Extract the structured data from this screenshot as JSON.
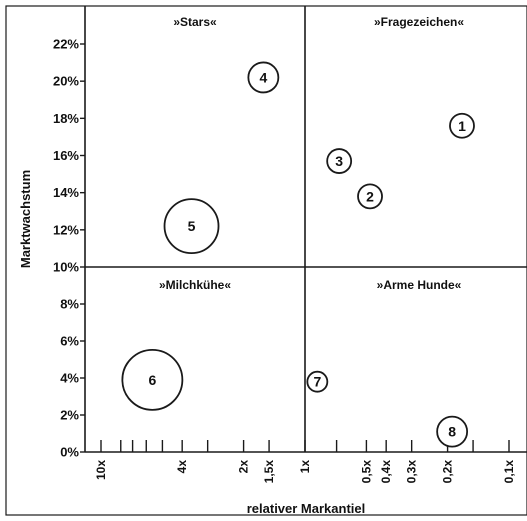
{
  "chart_data": {
    "type": "scatter",
    "title": "",
    "xlabel": "relativer Markantiel",
    "ylabel": "Marktwachstum",
    "x_scale": "log-reversed",
    "xlim": [
      10,
      0.1
    ],
    "ylim": [
      0,
      23
    ],
    "x_divider": 1,
    "y_divider": 10,
    "y_ticks": [
      {
        "value": 0,
        "label": "0%"
      },
      {
        "value": 2,
        "label": "2%"
      },
      {
        "value": 4,
        "label": "4%"
      },
      {
        "value": 6,
        "label": "6%"
      },
      {
        "value": 8,
        "label": "8%"
      },
      {
        "value": 10,
        "label": "10%"
      },
      {
        "value": 12,
        "label": "12%"
      },
      {
        "value": 14,
        "label": "14%"
      },
      {
        "value": 16,
        "label": "16%"
      },
      {
        "value": 18,
        "label": "18%"
      },
      {
        "value": 20,
        "label": "20%"
      },
      {
        "value": 22,
        "label": "22%"
      }
    ],
    "x_ticks": [
      {
        "value": 10,
        "label": "10x"
      },
      {
        "value": 8
      },
      {
        "value": 7
      },
      {
        "value": 6
      },
      {
        "value": 5
      },
      {
        "value": 4,
        "label": "4x"
      },
      {
        "value": 3
      },
      {
        "value": 2,
        "label": "2x"
      },
      {
        "value": 1.5,
        "label": "1,5x"
      },
      {
        "value": 1,
        "label": "1x"
      },
      {
        "value": 0.7
      },
      {
        "value": 0.5,
        "label": "0,5x"
      },
      {
        "value": 0.4,
        "label": "0,4x"
      },
      {
        "value": 0.3,
        "label": "0,3x"
      },
      {
        "value": 0.2,
        "label": "0,2x"
      },
      {
        "value": 0.15
      },
      {
        "value": 0.1,
        "label": "0,1x"
      }
    ],
    "quadrants": [
      {
        "label": "»Stars«",
        "position": "top-left"
      },
      {
        "label": "»Fragezeichen«",
        "position": "top-right"
      },
      {
        "label": "»Milchkühe«",
        "position": "bottom-left"
      },
      {
        "label": "»Arme Hunde«",
        "position": "bottom-right"
      }
    ],
    "points": [
      {
        "label": "1",
        "x": 0.17,
        "y": 17.6,
        "size": "small"
      },
      {
        "label": "2",
        "x": 0.48,
        "y": 13.8,
        "size": "small"
      },
      {
        "label": "3",
        "x": 0.68,
        "y": 15.7,
        "size": "small"
      },
      {
        "label": "4",
        "x": 1.6,
        "y": 20.2,
        "size": "medium"
      },
      {
        "label": "5",
        "x": 3.6,
        "y": 12.2,
        "size": "large"
      },
      {
        "label": "6",
        "x": 5.6,
        "y": 3.9,
        "size": "xlarge"
      },
      {
        "label": "7",
        "x": 0.87,
        "y": 3.8,
        "size": "tiny"
      },
      {
        "label": "8",
        "x": 0.19,
        "y": 1.1,
        "size": "medium"
      }
    ]
  }
}
